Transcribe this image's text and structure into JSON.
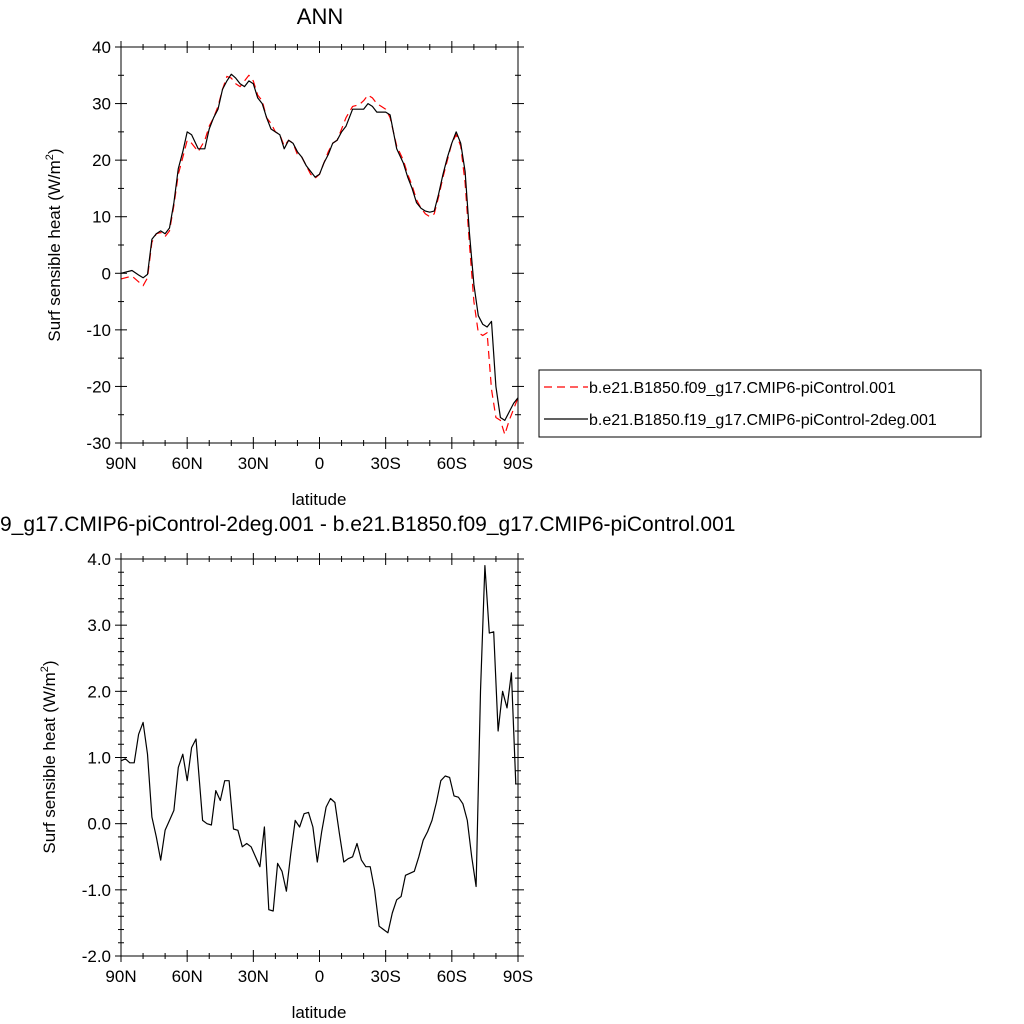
{
  "chart_data": [
    {
      "type": "line",
      "title": "ANN",
      "xlabel": "latitude",
      "ylabel": "Surf sensible heat (W/m",
      "ylabel_sup": "2",
      "ylabel_close": ")",
      "xlim": [
        90,
        -90
      ],
      "ylim": [
        -30,
        40
      ],
      "x_ticks": [
        90,
        60,
        30,
        0,
        -30,
        -60,
        -90
      ],
      "x_tick_labels": [
        "90N",
        "60N",
        "30N",
        "0",
        "30S",
        "60S",
        "90S"
      ],
      "y_ticks": [
        -30,
        -20,
        -10,
        0,
        10,
        20,
        30,
        40
      ],
      "y_tick_labels": [
        "-30",
        "-20",
        "-10",
        "0",
        "10",
        "20",
        "30",
        "40"
      ],
      "legend_position": "right",
      "series": [
        {
          "name": "b.e21.B1850.f09_g17.CMIP6-piControl.001",
          "color": "#ff0000",
          "style": "dashed",
          "x": [
            90,
            85,
            82,
            80,
            78,
            76,
            74,
            72,
            70,
            68,
            66,
            64,
            62,
            60,
            58,
            55,
            52,
            50,
            48,
            46,
            44,
            42,
            40,
            38,
            36,
            34,
            32,
            30,
            28,
            26,
            24,
            22,
            20,
            18,
            16,
            14,
            12,
            10,
            8,
            6,
            4,
            2,
            0,
            -2,
            -4,
            -6,
            -8,
            -10,
            -12,
            -15,
            -18,
            -20,
            -22,
            -24,
            -26,
            -28,
            -30,
            -32,
            -35,
            -38,
            -40,
            -42,
            -44,
            -46,
            -48,
            -50,
            -52,
            -54,
            -56,
            -58,
            -60,
            -62,
            -64,
            -66,
            -68,
            -70,
            -72,
            -74,
            -76,
            -78,
            -80,
            -82,
            -84,
            -86,
            -88,
            -90
          ],
          "y": [
            -1.0,
            -0.5,
            -1.5,
            -2.2,
            -0.8,
            5.5,
            7.0,
            7.2,
            6.5,
            7.5,
            12.0,
            17.5,
            20.5,
            23.5,
            23.0,
            21.5,
            23.5,
            26.0,
            27.5,
            29.5,
            32.5,
            34.8,
            34.5,
            33.5,
            33.0,
            34.0,
            35.0,
            34.0,
            31.5,
            30.5,
            27.5,
            26.5,
            25.0,
            24.5,
            22.5,
            23.5,
            23.0,
            21.0,
            20.5,
            19.0,
            17.5,
            16.8,
            17.5,
            19.5,
            21.5,
            23.0,
            23.5,
            25.5,
            27.5,
            29.5,
            29.8,
            30.5,
            31.5,
            31.0,
            30.0,
            29.5,
            29.0,
            27.5,
            22.5,
            20.0,
            17.5,
            15.5,
            13.0,
            11.5,
            10.5,
            10.0,
            10.5,
            13.5,
            17.0,
            20.0,
            23.0,
            24.5,
            22.5,
            16.0,
            5.0,
            -5.0,
            -10.5,
            -11.0,
            -10.5,
            -20.5,
            -25.5,
            -26.0,
            -28.5,
            -26.0,
            -24.0,
            -22.0
          ]
        },
        {
          "name": "b.e21.B1850.f19_g17.CMIP6-piControl-2deg.001",
          "color": "#000000",
          "style": "solid",
          "x": [
            90,
            85,
            82,
            80,
            78,
            76,
            74,
            72,
            70,
            68,
            66,
            64,
            62,
            60,
            58,
            55,
            52,
            50,
            48,
            46,
            44,
            42,
            40,
            38,
            36,
            34,
            32,
            30,
            28,
            26,
            24,
            22,
            20,
            18,
            16,
            14,
            12,
            10,
            8,
            6,
            4,
            2,
            0,
            -2,
            -4,
            -6,
            -8,
            -10,
            -12,
            -15,
            -18,
            -20,
            -22,
            -24,
            -26,
            -28,
            -30,
            -32,
            -35,
            -38,
            -40,
            -42,
            -44,
            -46,
            -48,
            -50,
            -52,
            -54,
            -56,
            -58,
            -60,
            -62,
            -64,
            -66,
            -68,
            -70,
            -72,
            -74,
            -76,
            -78,
            -80,
            -82,
            -84,
            -86,
            -88,
            -90
          ],
          "y": [
            0.0,
            0.5,
            -0.3,
            -0.8,
            -0.2,
            6.0,
            7.0,
            7.5,
            7.0,
            8.0,
            12.5,
            18.5,
            21.5,
            25.0,
            24.5,
            22.0,
            22.0,
            25.5,
            27.5,
            29.0,
            32.5,
            34.0,
            35.2,
            34.5,
            33.5,
            33.0,
            34.0,
            33.5,
            31.0,
            30.0,
            27.5,
            25.5,
            25.0,
            24.5,
            22.0,
            23.5,
            23.0,
            21.5,
            20.5,
            19.0,
            18.0,
            17.0,
            17.5,
            19.5,
            21.0,
            23.0,
            23.5,
            25.0,
            26.0,
            29.0,
            29.0,
            29.0,
            30.0,
            29.5,
            28.5,
            28.5,
            28.5,
            28.0,
            22.0,
            19.5,
            17.0,
            15.0,
            12.5,
            11.5,
            11.0,
            10.8,
            11.0,
            14.0,
            17.5,
            20.5,
            23.0,
            25.0,
            23.0,
            18.0,
            7.0,
            -2.0,
            -7.5,
            -9.0,
            -9.5,
            -8.5,
            -20.0,
            -25.5,
            -26.0,
            -24.5,
            -23.0,
            -22.0
          ]
        }
      ]
    },
    {
      "type": "line",
      "title": "9_g17.CMIP6-piControl-2deg.001 - b.e21.B1850.f09_g17.CMIP6-piControl.001",
      "xlabel": "latitude",
      "ylabel": "Surf sensible heat (W/m",
      "ylabel_sup": "2",
      "ylabel_close": ")",
      "xlim": [
        90,
        -90
      ],
      "ylim": [
        -2.0,
        4.0
      ],
      "x_ticks": [
        90,
        60,
        30,
        0,
        -30,
        -60,
        -90
      ],
      "x_tick_labels": [
        "90N",
        "60N",
        "30N",
        "0",
        "30S",
        "60S",
        "90S"
      ],
      "y_ticks": [
        -2.0,
        -1.0,
        0.0,
        1.0,
        2.0,
        3.0,
        4.0
      ],
      "y_tick_labels": [
        "-2.0",
        "-1.0",
        "0.0",
        "1.0",
        "2.0",
        "3.0",
        "4.0"
      ],
      "series": [
        {
          "color": "#000000",
          "style": "solid",
          "x": [
            90,
            88,
            86,
            84,
            82,
            80,
            78,
            76,
            74,
            72,
            70,
            68,
            66,
            64,
            62,
            60,
            58,
            56,
            53,
            51,
            49,
            47,
            45,
            43,
            41,
            39,
            37,
            35,
            33,
            31,
            29,
            27,
            25,
            23,
            21,
            19,
            17,
            15,
            13,
            11,
            9,
            7,
            5,
            3,
            1,
            -1,
            -3,
            -5,
            -7,
            -9,
            -11,
            -13,
            -15,
            -17,
            -19,
            -21,
            -23,
            -25,
            -27,
            -29,
            -31,
            -33,
            -35,
            -37,
            -39,
            -41,
            -43,
            -45,
            -47,
            -49,
            -51,
            -53,
            -55,
            -57,
            -59,
            -61,
            -63,
            -65,
            -67,
            -69,
            -71,
            -73,
            -75,
            -77,
            -79,
            -81,
            -83,
            -85,
            -87,
            -89
          ],
          "y": [
            0.95,
            0.98,
            0.92,
            0.92,
            1.35,
            1.53,
            1.05,
            0.1,
            -0.2,
            -0.55,
            -0.1,
            0.05,
            0.2,
            0.85,
            1.05,
            0.65,
            1.15,
            1.28,
            0.05,
            0.0,
            -0.02,
            0.5,
            0.35,
            0.65,
            0.65,
            -0.08,
            -0.1,
            -0.35,
            -0.3,
            -0.35,
            -0.5,
            -0.65,
            -0.05,
            -1.3,
            -1.32,
            -0.6,
            -0.72,
            -1.02,
            -0.45,
            0.05,
            -0.05,
            0.15,
            0.17,
            -0.05,
            -0.58,
            -0.12,
            0.25,
            0.38,
            0.32,
            -0.15,
            -0.58,
            -0.53,
            -0.5,
            -0.3,
            -0.55,
            -0.65,
            -0.65,
            -1.0,
            -1.55,
            -1.6,
            -1.65,
            -1.35,
            -1.15,
            -1.1,
            -0.78,
            -0.75,
            -0.72,
            -0.5,
            -0.25,
            -0.12,
            0.05,
            0.32,
            0.65,
            0.72,
            0.7,
            0.42,
            0.4,
            0.3,
            0.05,
            -0.5,
            -0.95,
            2.0,
            3.9,
            2.88,
            2.9,
            1.4,
            2.0,
            1.75,
            2.28,
            0.6
          ]
        }
      ]
    }
  ]
}
